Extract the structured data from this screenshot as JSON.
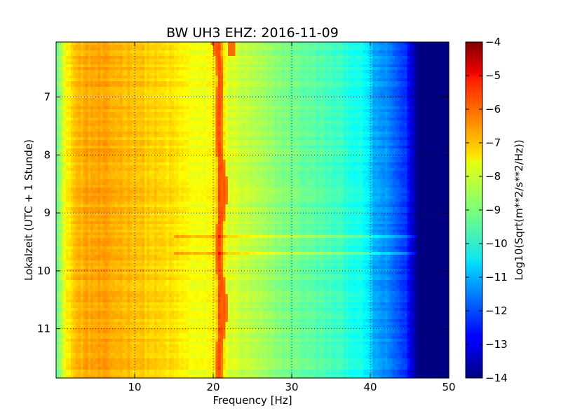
{
  "chart_data": {
    "type": "heatmap",
    "title": "BW UH3 EHZ: 2016-11-09",
    "xlabel": "Frequency [Hz]",
    "ylabel": "Lokalzeit (UTC + 1 Stunde)",
    "xlim": [
      0,
      50
    ],
    "ylim": [
      11.85,
      6.05
    ],
    "y_inverted": true,
    "x_ticks": [
      10,
      20,
      30,
      40,
      50
    ],
    "x_tick_labels": [
      "10",
      "20",
      "30",
      "40",
      "50"
    ],
    "y_ticks": [
      7,
      8,
      9,
      10,
      11
    ],
    "y_tick_labels": [
      "7",
      "8",
      "9",
      "10",
      "11"
    ],
    "grid": true,
    "colormap": "jet",
    "colorbar": {
      "label": "Log10(Sqrt(m**2/s**2/Hz))",
      "range": [
        -14,
        -4
      ],
      "ticks": [
        -4,
        -5,
        -6,
        -7,
        -8,
        -9,
        -10,
        -11,
        -12,
        -13,
        -14
      ],
      "tick_labels": [
        "−4",
        "−5",
        "−6",
        "−7",
        "−8",
        "−9",
        "−10",
        "−11",
        "−12",
        "−13",
        "−14"
      ]
    },
    "spectrum_profile": {
      "frequency_hz": [
        0.0,
        0.8,
        1.5,
        2.5,
        4,
        6,
        8,
        10,
        12,
        15,
        17,
        19,
        20.4,
        20.8,
        21.3,
        22,
        25,
        28,
        30,
        33,
        36,
        38,
        39.5,
        40.5,
        42,
        43.5,
        44.5,
        45.3,
        46,
        48,
        50
      ],
      "log10_amplitude": [
        -9.2,
        -8.3,
        -7.6,
        -7.1,
        -6.9,
        -6.9,
        -7.0,
        -7.1,
        -7.3,
        -7.5,
        -7.8,
        -7.95,
        -7.5,
        -5.9,
        -7.5,
        -8.1,
        -8.5,
        -8.9,
        -9.1,
        -9.4,
        -9.7,
        -10.0,
        -10.3,
        -11.1,
        -11.4,
        -11.9,
        -12.3,
        -13.1,
        -14.0,
        -14.0,
        -14.0
      ]
    },
    "features": [
      {
        "type": "narrowband_line",
        "frequency_hz": 21,
        "log10_amplitude": -6.0
      },
      {
        "type": "narrowband_line",
        "frequency_hz": 22.3,
        "time_range": [
          6.05,
          6.3
        ],
        "log10_amplitude": -6.3
      },
      {
        "type": "horizontal_band",
        "time": 9.4,
        "log10_amplitude_increase": 0.8
      },
      {
        "type": "horizontal_band",
        "time": 9.7,
        "log10_amplitude_increase": 0.8
      }
    ]
  }
}
